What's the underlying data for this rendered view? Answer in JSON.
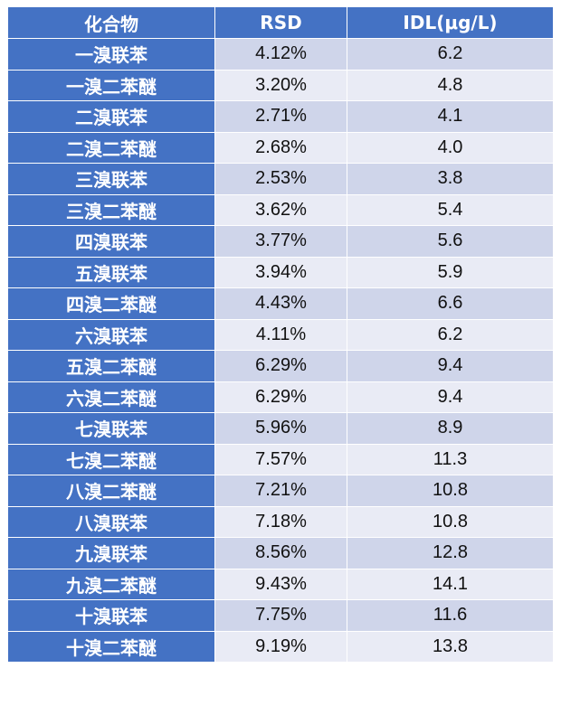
{
  "table": {
    "headers": [
      "化合物",
      "RSD",
      "IDL(μg/L)"
    ],
    "rows": [
      {
        "compound": "一溴联苯",
        "rsd": "4.12%",
        "idl": "6.2"
      },
      {
        "compound": "一溴二苯醚",
        "rsd": "3.20%",
        "idl": "4.8"
      },
      {
        "compound": "二溴联苯",
        "rsd": "2.71%",
        "idl": "4.1"
      },
      {
        "compound": "二溴二苯醚",
        "rsd": "2.68%",
        "idl": "4.0"
      },
      {
        "compound": "三溴联苯",
        "rsd": "2.53%",
        "idl": "3.8"
      },
      {
        "compound": "三溴二苯醚",
        "rsd": "3.62%",
        "idl": "5.4"
      },
      {
        "compound": "四溴联苯",
        "rsd": "3.77%",
        "idl": "5.6"
      },
      {
        "compound": "五溴联苯",
        "rsd": "3.94%",
        "idl": "5.9"
      },
      {
        "compound": "四溴二苯醚",
        "rsd": "4.43%",
        "idl": "6.6"
      },
      {
        "compound": "六溴联苯",
        "rsd": "4.11%",
        "idl": "6.2"
      },
      {
        "compound": "五溴二苯醚",
        "rsd": "6.29%",
        "idl": "9.4"
      },
      {
        "compound": "六溴二苯醚",
        "rsd": "6.29%",
        "idl": "9.4"
      },
      {
        "compound": "七溴联苯",
        "rsd": "5.96%",
        "idl": "8.9"
      },
      {
        "compound": "七溴二苯醚",
        "rsd": "7.57%",
        "idl": "11.3"
      },
      {
        "compound": "八溴二苯醚",
        "rsd": "7.21%",
        "idl": "10.8"
      },
      {
        "compound": "八溴联苯",
        "rsd": "7.18%",
        "idl": "10.8"
      },
      {
        "compound": "九溴联苯",
        "rsd": "8.56%",
        "idl": "12.8"
      },
      {
        "compound": "九溴二苯醚",
        "rsd": "9.43%",
        "idl": "14.1"
      },
      {
        "compound": "十溴联苯",
        "rsd": "7.75%",
        "idl": "11.6"
      },
      {
        "compound": "十溴二苯醚",
        "rsd": "9.19%",
        "idl": "13.8"
      }
    ]
  },
  "colors": {
    "header_blue": "#4472c4",
    "row_band_dark": "#cfd5ea",
    "row_band_light": "#e9ebf5",
    "header_text": "#ffffff"
  }
}
